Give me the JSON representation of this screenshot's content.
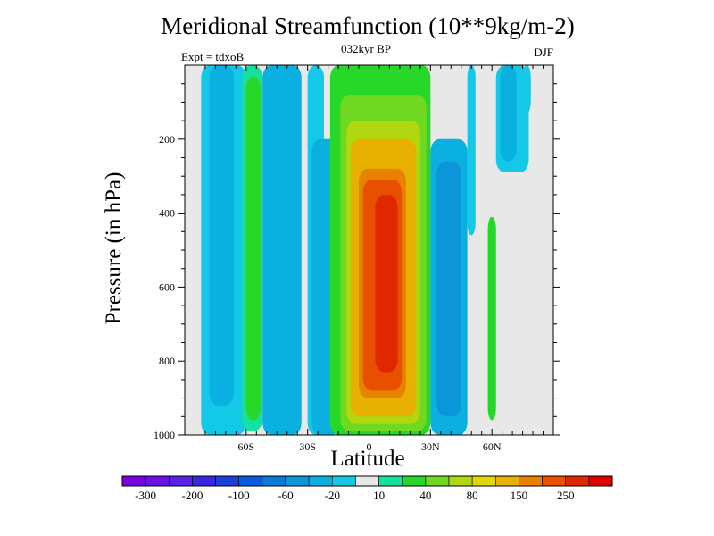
{
  "chart_data": {
    "type": "heatmap",
    "title": "Meridional Streamfunction (10**9kg/m-2)",
    "subtitle_left": "Expt = tdxoB",
    "subtitle_center": "032kyr BP",
    "subtitle_right": "DJF",
    "xlabel": "Latitude",
    "ylabel": "Pressure (in hPa)",
    "xlim": [
      -90,
      90
    ],
    "ylim": [
      1000,
      0
    ],
    "x_ticks": [
      {
        "value": -60,
        "label": "60S"
      },
      {
        "value": -30,
        "label": "30S"
      },
      {
        "value": 0,
        "label": "0"
      },
      {
        "value": 30,
        "label": "30N"
      },
      {
        "value": 60,
        "label": "60N"
      }
    ],
    "y_ticks": [
      {
        "value": 200,
        "label": "200"
      },
      {
        "value": 400,
        "label": "400"
      },
      {
        "value": 600,
        "label": "600"
      },
      {
        "value": 800,
        "label": "800"
      },
      {
        "value": 1000,
        "label": "1000"
      }
    ],
    "colorbar": {
      "colors": [
        "#7a00e0",
        "#6a10e8",
        "#5a20e8",
        "#3a28e0",
        "#1a40d8",
        "#0a5ae0",
        "#0a7ad8",
        "#0a96d8",
        "#0ab0e0",
        "#14c8e8",
        "#e8e8e8",
        "#14e0a0",
        "#28d828",
        "#70d820",
        "#b0d810",
        "#e0d800",
        "#e8b000",
        "#e88000",
        "#e85000",
        "#e02800",
        "#e00000"
      ],
      "labels": [
        "-300",
        "-200",
        "-100",
        "-60",
        "-20",
        "10",
        "40",
        "80",
        "150",
        "250"
      ],
      "label_positions": [
        1,
        3,
        5,
        7,
        9,
        11,
        13,
        15,
        17,
        19
      ]
    },
    "cells": [
      {
        "lat": [
          -90,
          -86
        ],
        "p": [
          0,
          360
        ],
        "value": -10
      },
      {
        "lat": [
          -88,
          -85
        ],
        "p": [
          0,
          170
        ],
        "value": 0
      },
      {
        "lat": [
          -82,
          -60
        ],
        "p": [
          0,
          1000
        ],
        "value": -20
      },
      {
        "lat": [
          -78,
          -66
        ],
        "p": [
          0,
          920
        ],
        "value": -40
      },
      {
        "lat": [
          -62,
          -52
        ],
        "p": [
          0,
          990
        ],
        "value": 15
      },
      {
        "lat": [
          -60,
          -53
        ],
        "p": [
          30,
          960
        ],
        "value": 35
      },
      {
        "lat": [
          -52,
          -33
        ],
        "p": [
          0,
          1000
        ],
        "value": -30
      },
      {
        "lat": [
          -50,
          -37
        ],
        "p": [
          0,
          1000
        ],
        "value": -40
      },
      {
        "lat": [
          -50,
          -44
        ],
        "p": [
          0,
          1000
        ],
        "value": -30
      },
      {
        "lat": [
          -30,
          -22
        ],
        "p": [
          0,
          1000
        ],
        "value": -20
      },
      {
        "lat": [
          -28,
          -14
        ],
        "p": [
          200,
          1000
        ],
        "value": -40
      },
      {
        "lat": [
          -19,
          30
        ],
        "p": [
          0,
          1000
        ],
        "value": 20
      },
      {
        "lat": [
          -14,
          28
        ],
        "p": [
          80,
          990
        ],
        "value": 40
      },
      {
        "lat": [
          -11,
          25
        ],
        "p": [
          150,
          970
        ],
        "value": 70
      },
      {
        "lat": [
          -9,
          23
        ],
        "p": [
          200,
          950
        ],
        "value": 100
      },
      {
        "lat": [
          -7,
          20
        ],
        "p": [
          240,
          930
        ],
        "value": 140
      },
      {
        "lat": [
          -5,
          18
        ],
        "p": [
          280,
          900
        ],
        "value": 180
      },
      {
        "lat": [
          -3,
          16
        ],
        "p": [
          310,
          880
        ],
        "value": 220
      },
      {
        "lat": [
          3,
          14
        ],
        "p": [
          350,
          830
        ],
        "value": 260
      },
      {
        "lat": [
          30,
          48
        ],
        "p": [
          200,
          1000
        ],
        "value": -30
      },
      {
        "lat": [
          33,
          45
        ],
        "p": [
          260,
          950
        ],
        "value": -60
      },
      {
        "lat": [
          48,
          52
        ],
        "p": [
          0,
          460
        ],
        "value": -20
      },
      {
        "lat": [
          58,
          62
        ],
        "p": [
          410,
          960
        ],
        "value": 20
      },
      {
        "lat": [
          62,
          78
        ],
        "p": [
          0,
          290
        ],
        "value": -20
      },
      {
        "lat": [
          64,
          72
        ],
        "p": [
          0,
          260
        ],
        "value": -40
      },
      {
        "lat": [
          75,
          79
        ],
        "p": [
          0,
          130
        ],
        "value": -20
      }
    ]
  }
}
